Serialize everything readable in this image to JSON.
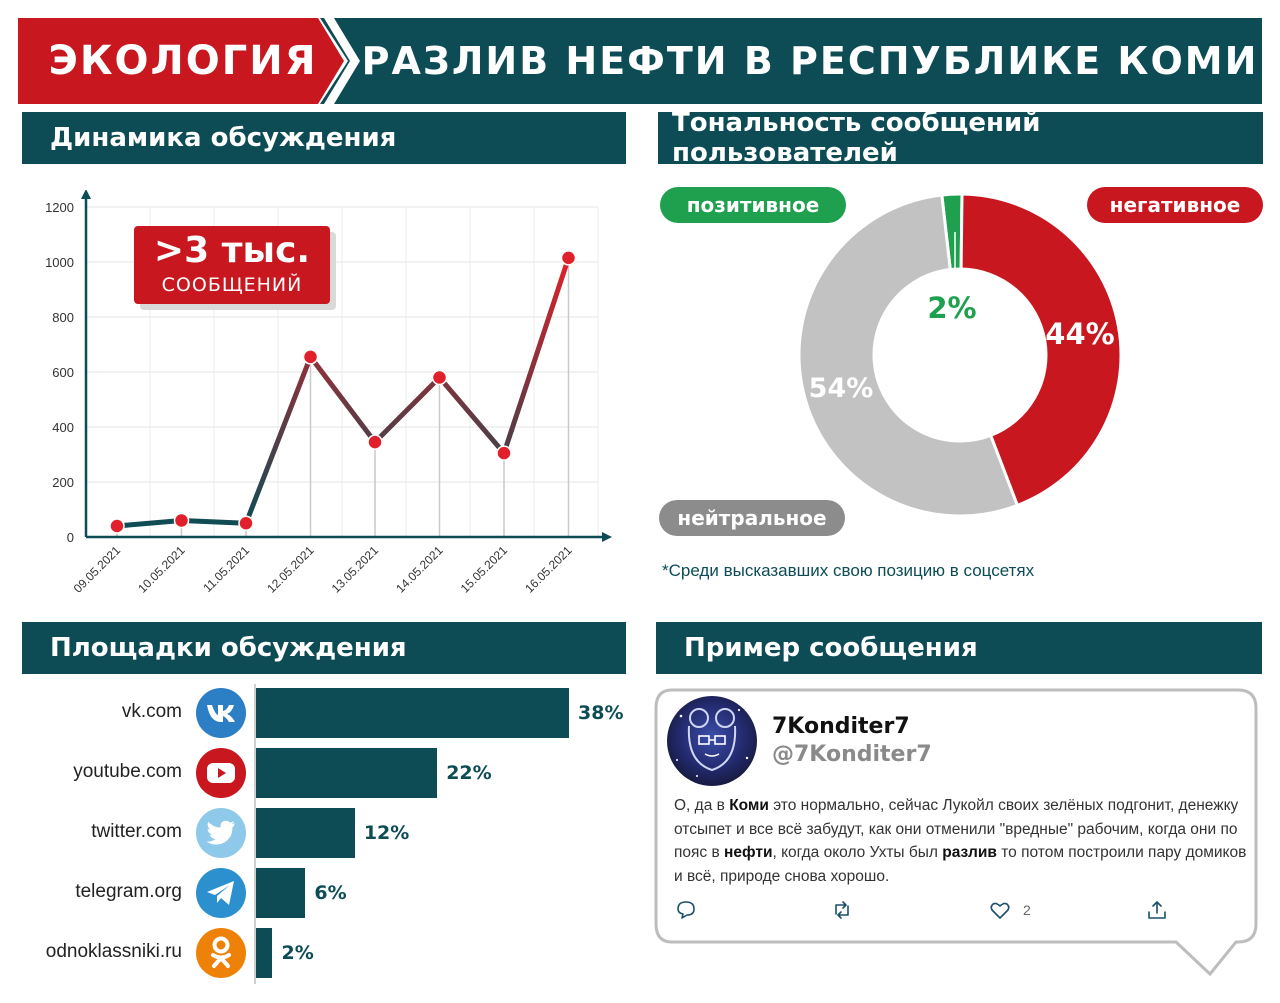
{
  "banner": {
    "category": "ЭКОЛОГИЯ",
    "title": "РАЗЛИВ НЕФТИ В РЕСПУБЛИКЕ КОМИ",
    "colors": {
      "red": "#c8171e",
      "teal": "#0d4c55"
    }
  },
  "dynamics": {
    "heading": "Динамика обсуждения",
    "callout_big": ">3 тыс.",
    "callout_small": "СООБЩЕНИЙ"
  },
  "tonality": {
    "heading": "Тональность сообщений пользователей",
    "positive_label": "позитивное",
    "negative_label": "негативное",
    "neutral_label": "нейтральное",
    "positive_pct": "2%",
    "negative_pct": "44%",
    "neutral_pct": "54%",
    "footnote": "*Среди высказавших свою позицию в соцсетях"
  },
  "platforms": {
    "heading": "Площадки обсуждения",
    "items": [
      {
        "name": "vk.com",
        "pct_label": "38%",
        "value": 38,
        "icon": "vk-icon",
        "color": "#2c7fc4"
      },
      {
        "name": "youtube.com",
        "pct_label": "22%",
        "value": 22,
        "icon": "youtube-icon",
        "color": "#c8171e"
      },
      {
        "name": "twitter.com",
        "pct_label": "12%",
        "value": 12,
        "icon": "twitter-icon",
        "color": "#8ec9ea"
      },
      {
        "name": "telegram.org",
        "pct_label": "6%",
        "value": 6,
        "icon": "telegram-icon",
        "color": "#2c90cf"
      },
      {
        "name": "odnoklassniki.ru",
        "pct_label": "2%",
        "value": 2,
        "icon": "odnoklassniki-icon",
        "color": "#ee8208"
      }
    ]
  },
  "example": {
    "heading": "Пример сообщения",
    "name": "7Konditer7",
    "handle": "@7Konditer7",
    "text_parts": [
      {
        "t": "О, да в ",
        "b": false
      },
      {
        "t": "Коми",
        "b": true
      },
      {
        "t": " это нормально, сейчас Лукойл своих зелёных подгонит, денежку отсыпет и все всё забудут, как они отменили \"вредные\" рабочим, когда они по пояс в ",
        "b": false
      },
      {
        "t": "нефти",
        "b": true
      },
      {
        "t": ", когда около Ухты был ",
        "b": false
      },
      {
        "t": "разлив",
        "b": true
      },
      {
        "t": " то потом построили пару домиков и всё, природе снова хорошо.",
        "b": false
      }
    ],
    "likes": "2"
  },
  "chart_data": [
    {
      "type": "line",
      "title": "Динамика обсуждения",
      "categories": [
        "09.05.2021",
        "10.05.2021",
        "11.05.2021",
        "12.05.2021",
        "13.05.2021",
        "14.05.2021",
        "15.05.2021",
        "16.05.2021"
      ],
      "values": [
        40,
        60,
        50,
        655,
        345,
        580,
        305,
        1015
      ],
      "ylim": [
        0,
        1200
      ],
      "yticks": [
        0,
        200,
        400,
        600,
        800,
        1000,
        1200
      ],
      "grid": true
    },
    {
      "type": "pie",
      "title": "Тональность сообщений пользователей",
      "labels": [
        "позитивное",
        "негативное",
        "нейтральное"
      ],
      "values": [
        2,
        44,
        54
      ],
      "colors": [
        "#1fa04e",
        "#c8171e",
        "#c2c2c2"
      ]
    },
    {
      "type": "bar",
      "title": "Площадки обсуждения",
      "categories": [
        "vk.com",
        "youtube.com",
        "twitter.com",
        "telegram.org",
        "odnoklassniki.ru"
      ],
      "values": [
        38,
        22,
        12,
        6,
        2
      ]
    }
  ]
}
